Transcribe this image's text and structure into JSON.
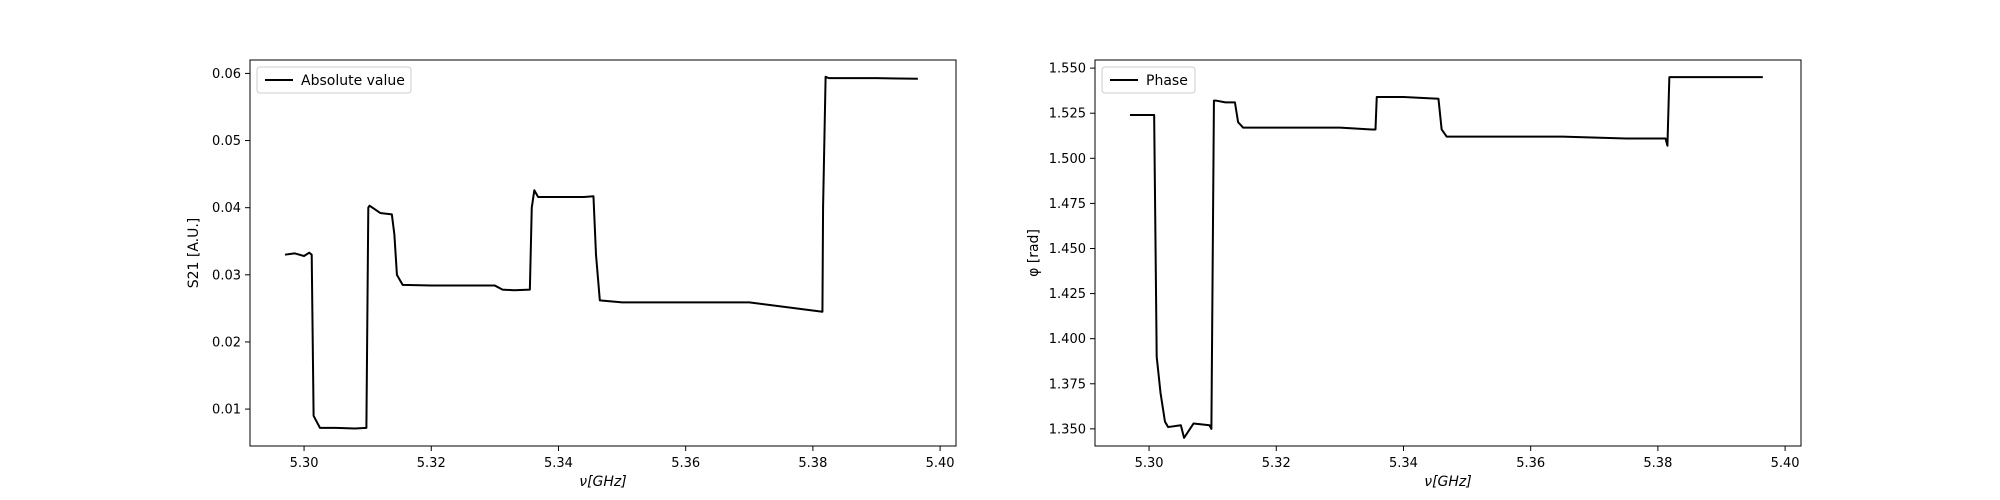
{
  "figure": {
    "background": "#ffffff",
    "line_color": "#000000"
  },
  "chart_data": [
    {
      "type": "line",
      "title": "",
      "xlabel": "ν[GHz]",
      "ylabel": "S21 [A.U.]",
      "xlim": [
        5.2915,
        5.4025
      ],
      "ylim": [
        0.0045,
        0.062
      ],
      "xticks": [
        5.3,
        5.32,
        5.34,
        5.36,
        5.38,
        5.4
      ],
      "xtick_labels": [
        "5.30",
        "5.32",
        "5.34",
        "5.36",
        "5.38",
        "5.40"
      ],
      "yticks": [
        0.01,
        0.02,
        0.03,
        0.04,
        0.05,
        0.06
      ],
      "ytick_labels": [
        "0.01",
        "0.02",
        "0.03",
        "0.04",
        "0.05",
        "0.06"
      ],
      "grid": false,
      "legend_position": "top-left",
      "series": [
        {
          "name": "Absolute value",
          "color": "#000000",
          "x": [
            5.297,
            5.2985,
            5.3,
            5.3008,
            5.3012,
            5.3015,
            5.3025,
            5.305,
            5.308,
            5.3098,
            5.3101,
            5.3103,
            5.312,
            5.3138,
            5.3142,
            5.3146,
            5.3155,
            5.32,
            5.325,
            5.33,
            5.3312,
            5.333,
            5.3355,
            5.3358,
            5.3362,
            5.3368,
            5.34,
            5.344,
            5.3455,
            5.3459,
            5.3465,
            5.35,
            5.36,
            5.37,
            5.3815,
            5.3816,
            5.382,
            5.3825,
            5.39,
            5.3965
          ],
          "y": [
            0.033,
            0.0332,
            0.0328,
            0.0333,
            0.033,
            0.009,
            0.0072,
            0.0072,
            0.0071,
            0.0072,
            0.04,
            0.0403,
            0.0392,
            0.039,
            0.036,
            0.03,
            0.0285,
            0.0284,
            0.0284,
            0.0284,
            0.0278,
            0.0277,
            0.0278,
            0.04,
            0.0426,
            0.0416,
            0.0416,
            0.0416,
            0.0417,
            0.033,
            0.0262,
            0.0259,
            0.0259,
            0.0259,
            0.0245,
            0.04,
            0.0595,
            0.0593,
            0.0593,
            0.0592
          ]
        }
      ]
    },
    {
      "type": "line",
      "title": "",
      "xlabel": "ν[GHz]",
      "ylabel": "φ [rad]",
      "xlim": [
        5.2915,
        5.4025
      ],
      "ylim": [
        1.3405,
        1.5545
      ],
      "xticks": [
        5.3,
        5.32,
        5.34,
        5.36,
        5.38,
        5.4
      ],
      "xtick_labels": [
        "5.30",
        "5.32",
        "5.34",
        "5.36",
        "5.38",
        "5.40"
      ],
      "yticks": [
        1.35,
        1.375,
        1.4,
        1.425,
        1.45,
        1.475,
        1.5,
        1.525,
        1.55
      ],
      "ytick_labels": [
        "1.350",
        "1.375",
        "1.400",
        "1.425",
        "1.450",
        "1.475",
        "1.500",
        "1.525",
        "1.550"
      ],
      "grid": false,
      "legend_position": "top-left",
      "series": [
        {
          "name": "Phase",
          "color": "#000000",
          "x": [
            5.297,
            5.299,
            5.3008,
            5.3012,
            5.3018,
            5.3025,
            5.303,
            5.305,
            5.3055,
            5.307,
            5.3095,
            5.3098,
            5.3102,
            5.3105,
            5.312,
            5.3135,
            5.314,
            5.3148,
            5.32,
            5.33,
            5.335,
            5.3356,
            5.3358,
            5.3362,
            5.34,
            5.3455,
            5.346,
            5.3468,
            5.355,
            5.365,
            5.375,
            5.3812,
            5.3815,
            5.3818,
            5.39,
            5.3965
          ],
          "y": [
            1.524,
            1.524,
            1.524,
            1.39,
            1.37,
            1.354,
            1.351,
            1.352,
            1.345,
            1.353,
            1.352,
            1.35,
            1.532,
            1.532,
            1.531,
            1.531,
            1.52,
            1.517,
            1.517,
            1.517,
            1.516,
            1.516,
            1.534,
            1.534,
            1.534,
            1.533,
            1.516,
            1.512,
            1.512,
            1.512,
            1.511,
            1.511,
            1.507,
            1.545,
            1.545,
            1.545
          ]
        }
      ]
    }
  ]
}
